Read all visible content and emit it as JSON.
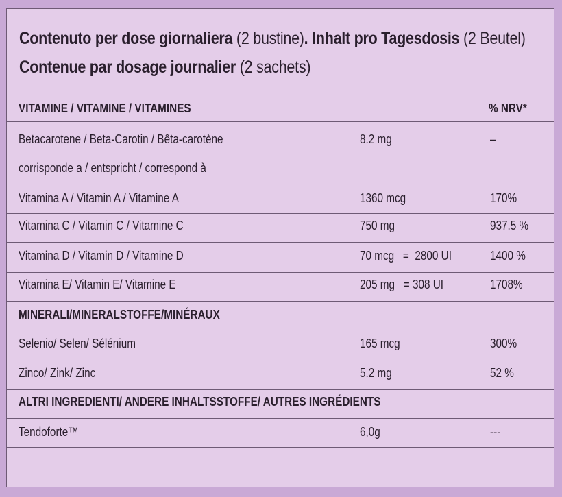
{
  "heading": {
    "line1_bold_a": "Contenuto per dose giornaliera",
    "line1_light_a": " (2 bustine)",
    "line1_bold_b": ". Inhalt pro Tagesdosis",
    "line1_light_b": " (2 Beutel)",
    "line2_bold": "Contenue par dosage journalier",
    "line2_light": " (2 sachets)"
  },
  "vitamins": {
    "header": "VITAMINE / VITAMINE / VITAMINES",
    "nrv_header": "% NRV*",
    "rows": [
      {
        "name": "Betacarotene / Beta-Carotin / Bêta-carotène",
        "amount": "8.2 mg",
        "nrv": "–"
      },
      {
        "name": "corrisponde a / entspricht / correspond à",
        "amount": "",
        "nrv": ""
      },
      {
        "name": "Vitamina A / Vitamin A / Vitamine A",
        "amount": "1360 mcg",
        "nrv": "170%"
      },
      {
        "name": "Vitamina C / Vitamin C / Vitamine C",
        "amount": "750 mg",
        "nrv": "937.5 %"
      },
      {
        "name": "Vitamina D / Vitamin D / Vitamine D",
        "amount": "70 mcg   =  2800 UI",
        "nrv": "1400 %"
      },
      {
        "name": "Vitamina E/ Vitamin E/ Vitamine E",
        "amount": "205 mg   = 308 UI",
        "nrv": "1708%"
      }
    ]
  },
  "minerals": {
    "header": "MINERALI/MINERALSTOFFE/MINÉRAUX",
    "rows": [
      {
        "name": "Selenio/ Selen/ Sélénium",
        "amount": "165 mcg",
        "nrv": "300%"
      },
      {
        "name": "Zinco/ Zink/ Zinc",
        "amount": "5.2 mg",
        "nrv": "52 %"
      }
    ]
  },
  "other": {
    "header": "ALTRI INGREDIENTI/ ANDERE INHALTSSTOFFE/ AUTRES INGRÉDIENTS",
    "rows": [
      {
        "name": "Tendoforte™",
        "amount": "6,0g",
        "nrv": "---"
      }
    ]
  }
}
